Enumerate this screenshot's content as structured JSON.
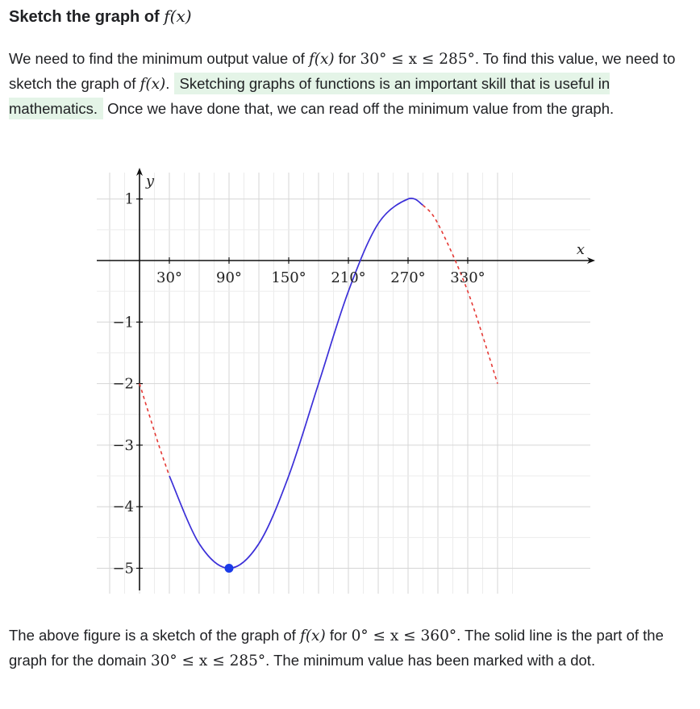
{
  "heading": {
    "text": "Sketch the graph of ",
    "math": "f(x)"
  },
  "paragraph1": {
    "t1": "We need to find the minimum output value of ",
    "m1": "f(x)",
    "t2": " for ",
    "m2": "30° ≤ x ≤ 285°",
    "t3": ". To find this value, we need to sketch the graph of ",
    "m3": "f(x)",
    "t4": ". ",
    "highlight": "Sketching graphs of functions is an important skill that is useful in mathematics.",
    "t5": " Once we have done that, we can read off the minimum value from the graph."
  },
  "paragraph2": {
    "t1": "The above figure is a sketch of the graph of ",
    "m1": "f(x)",
    "t2": " for ",
    "m2": "0° ≤ x ≤ 360°",
    "t3": ". The solid line is the part of the graph for the domain ",
    "m3": "30° ≤ x ≤ 285°",
    "t4": ". The minimum value has been marked with a dot."
  },
  "chart_data": {
    "type": "line",
    "xlabel": "x",
    "ylabel": "y",
    "xlim": [
      -35,
      375
    ],
    "ylim": [
      -5.4,
      1.15
    ],
    "x_ticks": [
      30,
      90,
      150,
      210,
      270,
      330
    ],
    "x_tick_labels": [
      "30°",
      "90°",
      "150°",
      "210°",
      "270°",
      "330°"
    ],
    "y_ticks": [
      1,
      -1,
      -2,
      -3,
      -4,
      -5
    ],
    "y_tick_labels": [
      "1",
      "−1",
      "−2",
      "−3",
      "−4",
      "−5"
    ],
    "grid": true,
    "function": "f(x) = 3·sin(x − 180°) − 2",
    "series": [
      {
        "style": "dashed",
        "color": "#e53935",
        "x": [
          0,
          10,
          20,
          30
        ],
        "y": [
          -2,
          -2.52,
          -3.03,
          -3.5
        ]
      },
      {
        "style": "solid",
        "color": "#3b2fd8",
        "x": [
          30,
          60,
          90,
          120,
          150,
          180,
          210,
          240,
          270,
          285
        ],
        "y": [
          -3.5,
          -4.6,
          -5,
          -4.6,
          -3.5,
          -2,
          -0.5,
          0.6,
          1,
          0.9
        ]
      },
      {
        "style": "dashed",
        "color": "#e53935",
        "x": [
          285,
          300,
          330,
          360
        ],
        "y": [
          0.9,
          0.6,
          -0.5,
          -2
        ]
      }
    ],
    "minimum_point": {
      "x": 90,
      "y": -5,
      "color": "#1a3be8"
    }
  }
}
